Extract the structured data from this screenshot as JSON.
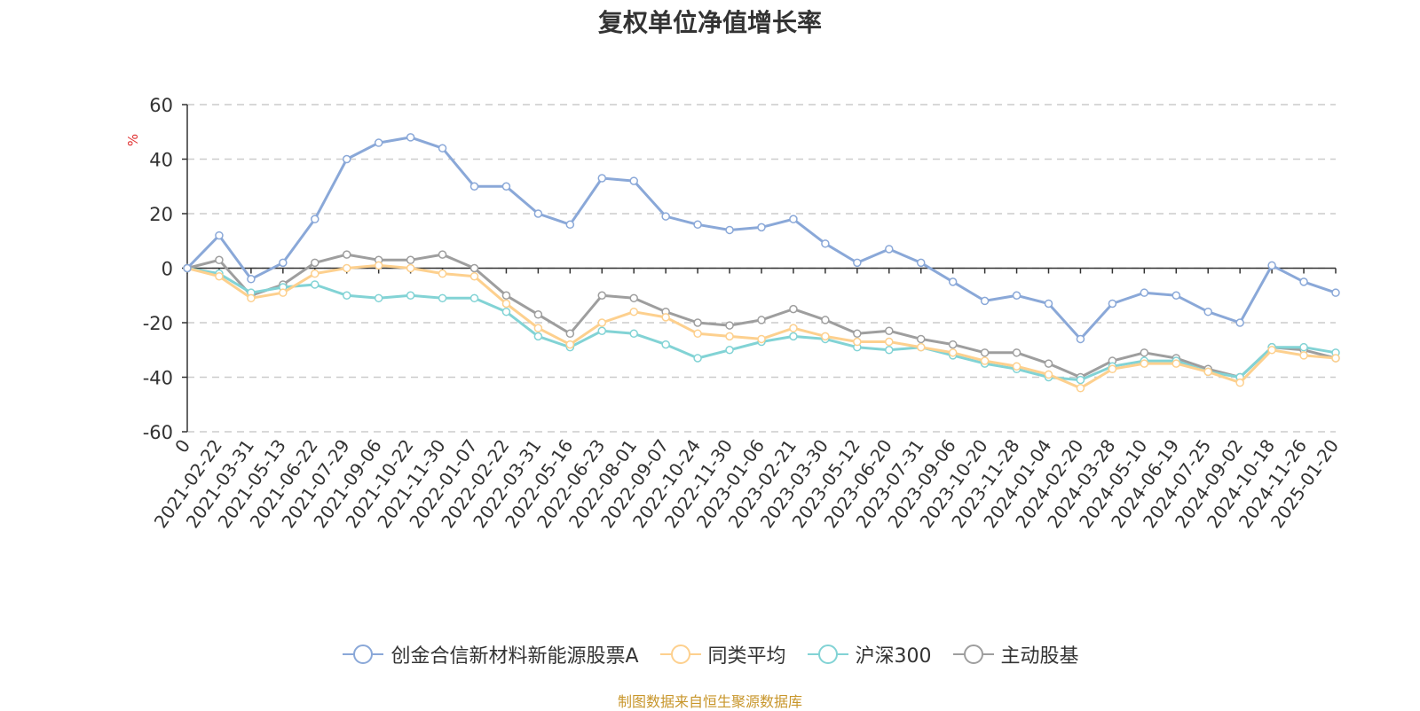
{
  "title": "复权单位净值增长率",
  "source_note": "制图数据来自恒生聚源数据库",
  "chart_data": {
    "type": "line",
    "title": "复权单位净值增长率",
    "ylabel": "%",
    "ylim": [
      -60,
      60
    ],
    "yticks": [
      60,
      40,
      20,
      0,
      -20,
      -40,
      -60
    ],
    "grid": true,
    "legend_position": "bottom",
    "x_tick_labels": [
      "0",
      "2021-02-22",
      "2021-03-31",
      "2021-05-13",
      "2021-06-22",
      "2021-07-29",
      "2021-09-06",
      "2021-10-22",
      "2021-11-30",
      "2022-01-07",
      "2022-02-22",
      "2022-03-31",
      "2022-05-16",
      "2022-06-23",
      "2022-08-01",
      "2022-09-07",
      "2022-10-24",
      "2022-11-30",
      "2023-01-06",
      "2023-02-21",
      "2023-03-30",
      "2023-05-12",
      "2023-06-20",
      "2023-07-31",
      "2023-09-06",
      "2023-10-20",
      "2023-11-28",
      "2024-01-04",
      "2024-02-20",
      "2024-03-28",
      "2024-05-10",
      "2024-06-19",
      "2024-07-25",
      "2024-09-02",
      "2024-10-18",
      "2024-11-26",
      "2025-01-20"
    ],
    "x": [
      "0",
      "2021-02-22",
      "2021-03-31",
      "2021-05-13",
      "2021-06-22",
      "2021-07-29",
      "2021-09-06",
      "2021-10-22",
      "2021-11-30",
      "2022-01-07",
      "2022-02-22",
      "2022-03-31",
      "2022-05-16",
      "2022-06-23",
      "2022-08-01",
      "2022-09-07",
      "2022-10-24",
      "2022-11-30",
      "2023-01-06",
      "2023-02-21",
      "2023-03-30",
      "2023-05-12",
      "2023-06-20",
      "2023-07-31",
      "2023-09-06",
      "2023-10-20",
      "2023-11-28",
      "2024-01-04",
      "2024-02-20",
      "2024-03-28",
      "2024-05-10",
      "2024-06-19",
      "2024-07-25",
      "2024-09-02",
      "2024-10-18",
      "2024-11-26",
      "2025-01-20"
    ],
    "series": [
      {
        "name": "创金合信新材料新能源股票A",
        "color": "#8aa8d8",
        "values": [
          0,
          12,
          -4,
          2,
          18,
          40,
          46,
          48,
          44,
          30,
          30,
          20,
          16,
          33,
          32,
          19,
          16,
          14,
          15,
          18,
          9,
          2,
          7,
          2,
          -5,
          -12,
          -10,
          -13,
          -26,
          -13,
          -9,
          -10,
          -16,
          -20,
          1,
          -5,
          -9
        ]
      },
      {
        "name": "同类平均",
        "color": "#fdd08e",
        "values": [
          0,
          -3,
          -11,
          -9,
          -2,
          0,
          1,
          0,
          -2,
          -3,
          -13,
          -22,
          -28,
          -20,
          -16,
          -18,
          -24,
          -25,
          -26,
          -22,
          -25,
          -27,
          -27,
          -29,
          -31,
          -34,
          -36,
          -39,
          -44,
          -37,
          -35,
          -35,
          -38,
          -42,
          -30,
          -32,
          -33
        ]
      },
      {
        "name": "沪深300",
        "color": "#82d3d5",
        "values": [
          0,
          -2,
          -9,
          -7,
          -6,
          -10,
          -11,
          -10,
          -11,
          -11,
          -16,
          -25,
          -29,
          -23,
          -24,
          -28,
          -33,
          -30,
          -27,
          -25,
          -26,
          -29,
          -30,
          -29,
          -32,
          -35,
          -37,
          -40,
          -41,
          -36,
          -34,
          -34,
          -38,
          -40,
          -29,
          -29,
          -31
        ]
      },
      {
        "name": "主动股基",
        "color": "#9e9e9e",
        "values": [
          0,
          3,
          -10,
          -6,
          2,
          5,
          3,
          3,
          5,
          0,
          -10,
          -17,
          -24,
          -10,
          -11,
          -16,
          -20,
          -21,
          -19,
          -15,
          -19,
          -24,
          -23,
          -26,
          -28,
          -31,
          -31,
          -35,
          -40,
          -34,
          -31,
          -33,
          -37,
          -40,
          -29,
          -30,
          -33
        ]
      }
    ]
  }
}
